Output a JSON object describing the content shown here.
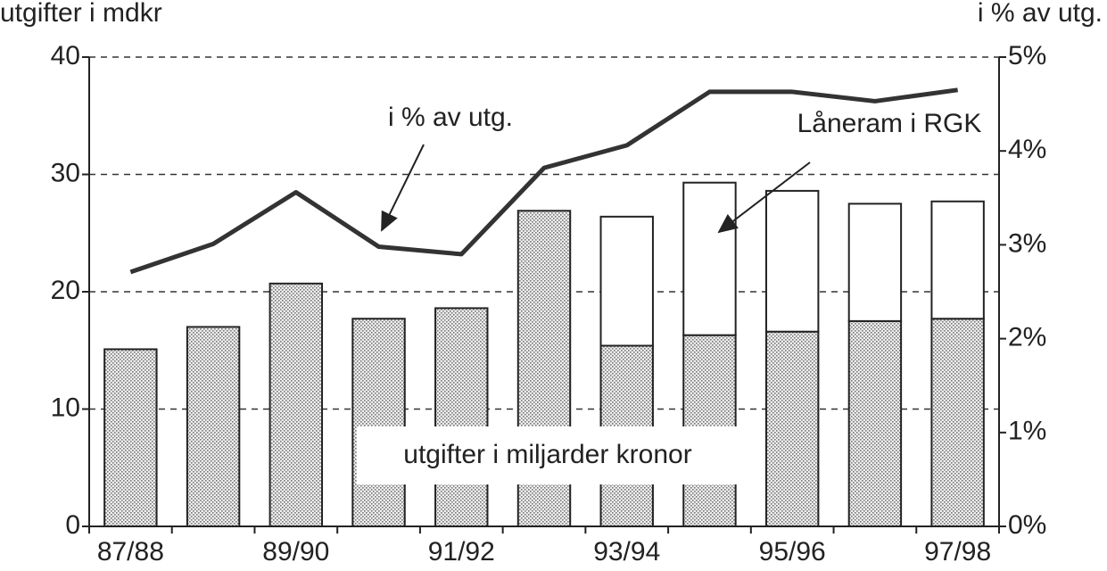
{
  "chart_data": {
    "type": "bar",
    "y_title": "utgifter i mdkr",
    "y2_title": "i % av utg.",
    "categories": [
      "87/88",
      null,
      "89/90",
      null,
      "91/92",
      null,
      "93/94",
      null,
      "95/96",
      null,
      "97/98"
    ],
    "stacked": true,
    "series": [
      {
        "name": "utgifter i miljarder kronor",
        "color": "#777777",
        "values": [
          15.1,
          17.0,
          20.7,
          17.7,
          18.6,
          26.9,
          15.4,
          16.3,
          16.6,
          17.5,
          17.7
        ]
      },
      {
        "name": "Låneram i RGK",
        "color": "#ffffff",
        "values": [
          null,
          null,
          null,
          null,
          null,
          null,
          11.0,
          13.0,
          12.0,
          10.0,
          10.0
        ]
      },
      {
        "name": "i % av utg.",
        "type": "line",
        "axis": "y2",
        "color": "#333333",
        "values": [
          2.71,
          3.01,
          3.56,
          2.98,
          2.9,
          3.82,
          4.06,
          4.63,
          4.63,
          4.53,
          4.65
        ]
      }
    ],
    "ylim": [
      0,
      40
    ],
    "yticks": [
      0,
      10,
      20,
      30,
      40
    ],
    "y2lim": [
      0,
      5
    ],
    "y2ticks": [
      {
        "value": 0,
        "label": "0%"
      },
      {
        "value": 1,
        "label": "1%"
      },
      {
        "value": 2,
        "label": "2%"
      },
      {
        "value": 3,
        "label": "3%"
      },
      {
        "value": 4,
        "label": "4%"
      },
      {
        "value": 5,
        "label": "5%"
      }
    ],
    "grid": true
  }
}
